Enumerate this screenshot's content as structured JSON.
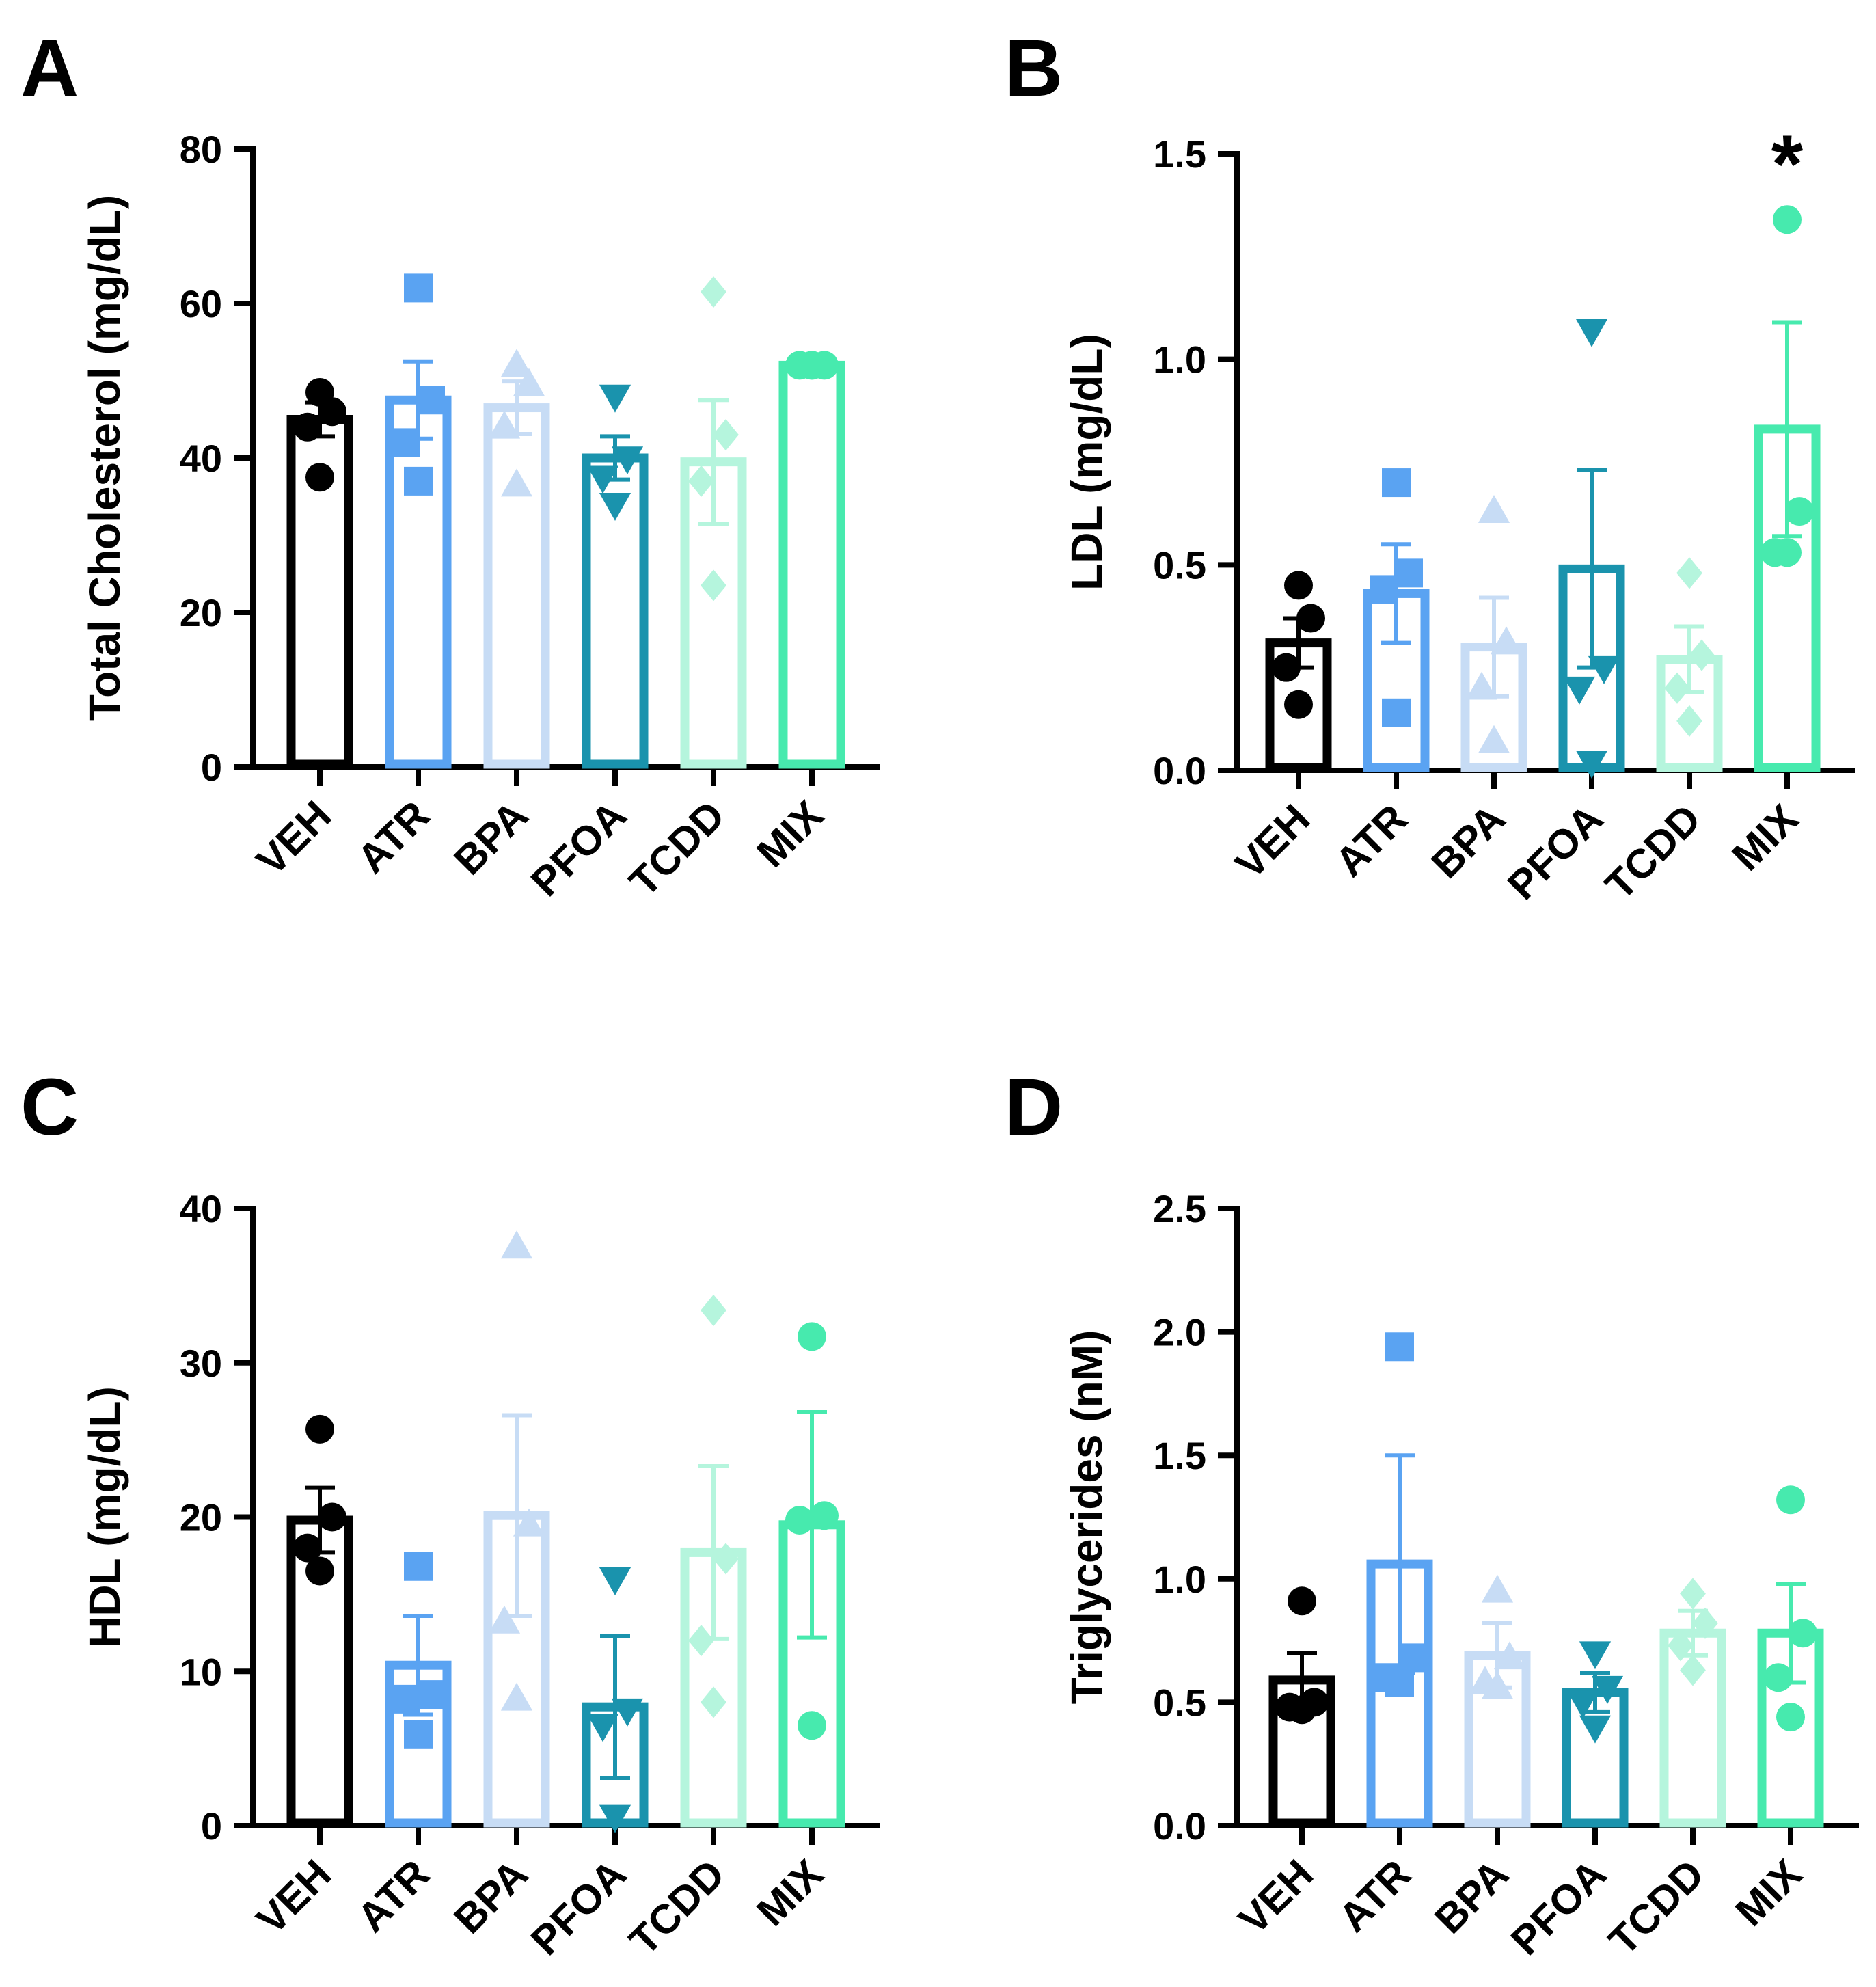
{
  "colors": {
    "VEH": "#000000",
    "ATR": "#5aa3f2",
    "BPA": "#c7dcf5",
    "PFOA": "#1a93ad",
    "TCDD": "#b5f5dd",
    "MIX": "#47eaae"
  },
  "chart_data": [
    {
      "panel": "A",
      "type": "bar",
      "ylabel": "Total Cholesterol (mg/dL)",
      "ylim": [
        0,
        80
      ],
      "yticks": [
        0,
        20,
        40,
        60,
        80
      ],
      "yticklabels": [
        "0",
        "20",
        "40",
        "60",
        "80"
      ],
      "categories": [
        "VEH",
        "ATR",
        "BPA",
        "PFOA",
        "TCDD",
        "MIX"
      ],
      "means": [
        45,
        47.5,
        46.5,
        40,
        39.5,
        52
      ],
      "sem": [
        2.2,
        5,
        3.4,
        2.8,
        8,
        0.5
      ],
      "points": [
        [
          48.5,
          46,
          44,
          37.5
        ],
        [
          62,
          47.5,
          42,
          37
        ],
        [
          52,
          49.5,
          44,
          36.5
        ],
        [
          48,
          40,
          37.5,
          34
        ],
        [
          61.5,
          43,
          37,
          23.5
        ],
        [
          52,
          52,
          52,
          52
        ]
      ],
      "markers": [
        "circle",
        "square",
        "triangle",
        "triangle-down",
        "diamond",
        "circle"
      ],
      "significant": []
    },
    {
      "panel": "B",
      "type": "bar",
      "ylabel": "LDL (mg/dL)",
      "ylim": [
        0,
        1.5
      ],
      "yticks": [
        0,
        0.5,
        1.0,
        1.5
      ],
      "yticklabels": [
        "0.0",
        "0.5",
        "1.0",
        "1.5"
      ],
      "categories": [
        "VEH",
        "ATR",
        "BPA",
        "PFOA",
        "TCDD",
        "MIX"
      ],
      "means": [
        0.31,
        0.43,
        0.3,
        0.49,
        0.27,
        0.83
      ],
      "sem": [
        0.06,
        0.12,
        0.12,
        0.24,
        0.08,
        0.26
      ],
      "points": [
        [
          0.45,
          0.37,
          0.25,
          0.16
        ],
        [
          0.7,
          0.48,
          0.44,
          0.14
        ],
        [
          0.63,
          0.31,
          0.2,
          0.07
        ],
        [
          1.07,
          0.25,
          0.2,
          0.02
        ],
        [
          0.48,
          0.28,
          0.2,
          0.12
        ],
        [
          1.34,
          0.63,
          0.53,
          0.53
        ]
      ],
      "markers": [
        "circle",
        "square",
        "triangle",
        "triangle-down",
        "diamond",
        "circle"
      ],
      "significant": [
        "MIX"
      ],
      "sig_marker": "*"
    },
    {
      "panel": "C",
      "type": "bar",
      "ylabel": "HDL (mg/dL)",
      "ylim": [
        0,
        40
      ],
      "yticks": [
        0,
        10,
        20,
        30,
        40
      ],
      "yticklabels": [
        "0",
        "10",
        "20",
        "30",
        "40"
      ],
      "categories": [
        "VEH",
        "ATR",
        "BPA",
        "PFOA",
        "TCDD",
        "MIX"
      ],
      "means": [
        19.8,
        10.4,
        20.1,
        7.7,
        17.7,
        19.5
      ],
      "sem": [
        2.1,
        3.2,
        6.5,
        4.6,
        5.6,
        7.3
      ],
      "points": [
        [
          25.7,
          20,
          18,
          16.5
        ],
        [
          16.8,
          8.5,
          8.2,
          5.9
        ],
        [
          37.5,
          19.5,
          13.2,
          8.2
        ],
        [
          16,
          7.5,
          6.5,
          0.6
        ],
        [
          33.4,
          17.3,
          12,
          8
        ],
        [
          31.7,
          20.1,
          19.8,
          6.5
        ]
      ],
      "markers": [
        "circle",
        "square",
        "triangle",
        "triangle-down",
        "diamond",
        "circle"
      ],
      "significant": []
    },
    {
      "panel": "D",
      "type": "bar",
      "ylabel": "Triglycerides (nM)",
      "ylim": [
        0,
        2.5
      ],
      "yticks": [
        0,
        0.5,
        1.0,
        1.5,
        2.0,
        2.5
      ],
      "yticklabels": [
        "0.0",
        "0.5",
        "1.0",
        "1.5",
        "2.0",
        "2.5"
      ],
      "categories": [
        "VEH",
        "ATR",
        "BPA",
        "PFOA",
        "TCDD",
        "MIX"
      ],
      "means": [
        0.59,
        1.06,
        0.69,
        0.54,
        0.78,
        0.78
      ],
      "sem": [
        0.11,
        0.44,
        0.13,
        0.08,
        0.09,
        0.2
      ],
      "points": [
        [
          0.91,
          0.5,
          0.48,
          0.47
        ],
        [
          1.94,
          0.68,
          0.6,
          0.58
        ],
        [
          0.95,
          0.68,
          0.58,
          0.56
        ],
        [
          0.7,
          0.56,
          0.5,
          0.4
        ],
        [
          0.94,
          0.82,
          0.73,
          0.63
        ],
        [
          1.32,
          0.78,
          0.6,
          0.44
        ]
      ],
      "markers": [
        "circle",
        "square",
        "triangle",
        "triangle-down",
        "diamond",
        "circle"
      ],
      "significant": []
    }
  ]
}
